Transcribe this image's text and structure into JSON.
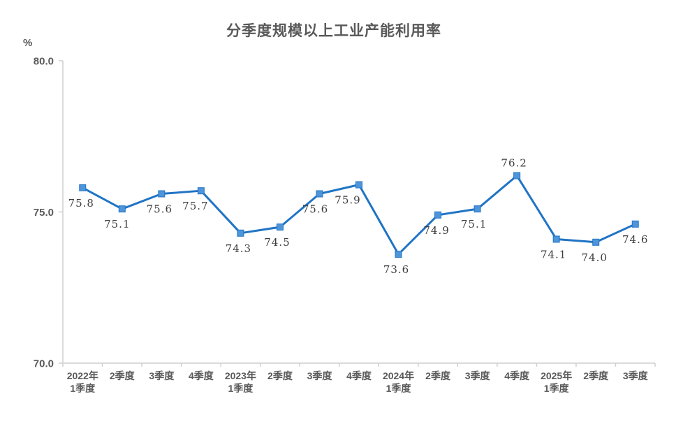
{
  "chart_data": {
    "type": "line",
    "title": "分季度规模以上工业产能利用率",
    "unit": "%",
    "categories": [
      "2022年\n1季度",
      "2季度",
      "3季度",
      "4季度",
      "2023年\n1季度",
      "2季度",
      "3季度",
      "4季度",
      "2024年\n1季度",
      "2季度",
      "3季度",
      "4季度",
      "2025年\n1季度",
      "2季度",
      "3季度"
    ],
    "values": [
      75.8,
      75.1,
      75.6,
      75.7,
      74.3,
      74.5,
      75.6,
      75.9,
      73.6,
      74.9,
      75.1,
      76.2,
      74.1,
      74.0,
      74.6
    ],
    "data_labels": [
      "75.8",
      "75.1",
      "75.6",
      "75.7",
      "74.3",
      "74.5",
      "75.6",
      "75.9",
      "73.6",
      "74.9",
      "75.1",
      "76.2",
      "74.1",
      "74.0",
      "74.6"
    ],
    "ylim": [
      70.0,
      80.0
    ],
    "yticks": [
      80.0,
      75.0,
      70.0
    ],
    "ytick_labels": [
      "80.0",
      "75.0",
      "70.0"
    ],
    "xlabel": "",
    "ylabel": "%",
    "grid": false,
    "legend": null,
    "marker": "square",
    "colors": {
      "line": "#2074c5",
      "marker_fill": "#4e95d9",
      "marker_stroke": "#2074c5",
      "axis": "#d0cece",
      "tick_text": "#595959",
      "data_label_text": "#3d3d3d",
      "title_text": "#595959",
      "background": "#ffffff"
    }
  }
}
